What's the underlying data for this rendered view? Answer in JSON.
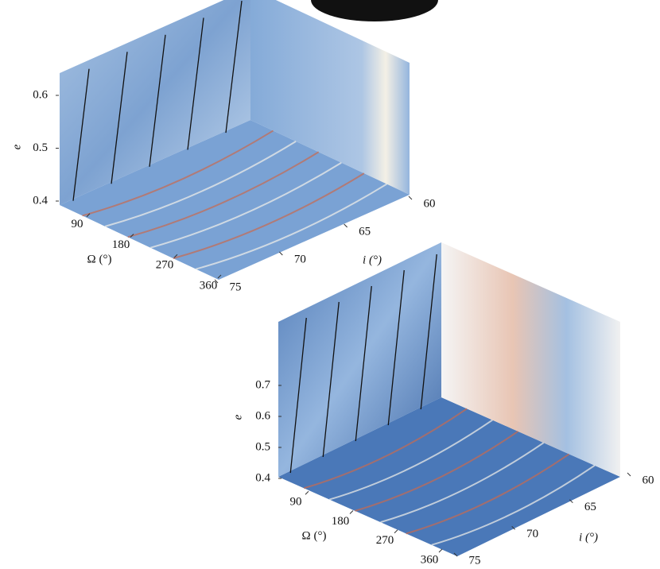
{
  "chart_data": [
    {
      "type": "surface3d",
      "xlabel": "Ω (°)",
      "ylabel": "i (°)",
      "zlabel": "e",
      "xlim": [
        0,
        360
      ],
      "xticks": [
        90,
        180,
        270,
        360
      ],
      "ylim": [
        60,
        75
      ],
      "yticks": [
        60,
        65,
        70,
        75
      ],
      "zlim": [
        0.4,
        0.65
      ],
      "zticks": [
        0.4,
        0.5,
        0.6
      ]
    },
    {
      "type": "surface3d",
      "xlabel": "Ω (°)",
      "ylabel": "i (°)",
      "zlabel": "e",
      "xlim": [
        0,
        360
      ],
      "xticks": [
        90,
        180,
        270,
        360
      ],
      "ylim": [
        60,
        75
      ],
      "yticks": [
        60,
        65,
        70,
        75
      ],
      "zlim": [
        0.4,
        0.8
      ],
      "zticks": [
        0.4,
        0.5,
        0.6,
        0.7
      ]
    }
  ]
}
